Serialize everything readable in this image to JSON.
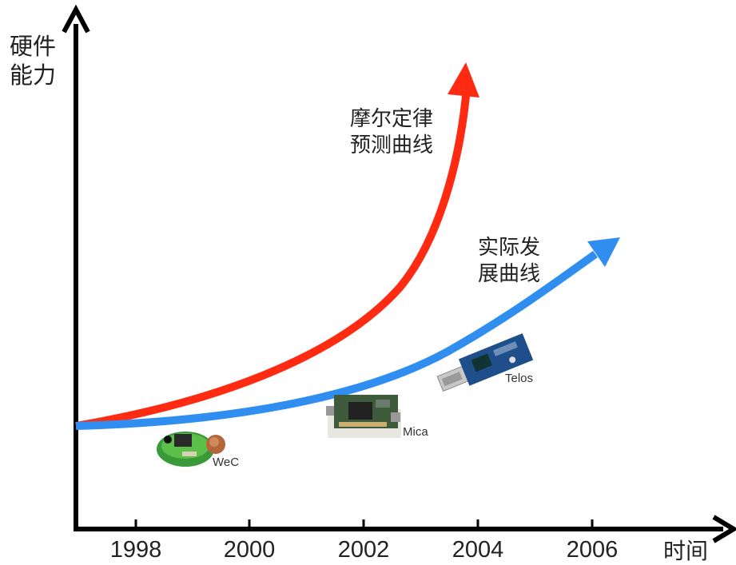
{
  "axes": {
    "y_label_line1": "硬件",
    "y_label_line2": "能力",
    "x_label": "时间"
  },
  "x_ticks": [
    "1998",
    "2000",
    "2002",
    "2004",
    "2006"
  ],
  "curves": {
    "moore": {
      "line1": "摩尔定律",
      "line2": "预测曲线",
      "color": "#ff2a12"
    },
    "actual": {
      "line1": "实际发",
      "line2": "展曲线",
      "color": "#2f8ef0"
    }
  },
  "devices": [
    {
      "name": "WeC",
      "icon": "wec-sensor-board-photo"
    },
    {
      "name": "Mica",
      "icon": "mica-sensor-board-photo"
    },
    {
      "name": "Telos",
      "icon": "telos-usb-sensor-photo"
    }
  ]
}
